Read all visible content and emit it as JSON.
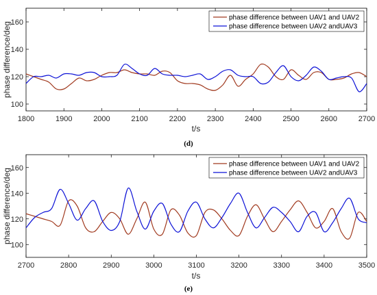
{
  "chart_data": [
    {
      "type": "line",
      "panel_label": "(d)",
      "xlabel": "t/s",
      "ylabel": "phase difference/deg",
      "xlim": [
        1800,
        2700
      ],
      "ylim": [
        95,
        170
      ],
      "xticks": [
        1800,
        1900,
        2000,
        2100,
        2200,
        2300,
        2400,
        2500,
        2600,
        2700
      ],
      "yticks": [
        100,
        120,
        140,
        160
      ],
      "legend_position": "top-right",
      "grid": false,
      "series": [
        {
          "name": "phase difference between UAV1 and UAV2",
          "color": "#a0391e",
          "x": [
            1800,
            1820,
            1840,
            1860,
            1880,
            1900,
            1920,
            1940,
            1960,
            1980,
            2000,
            2020,
            2040,
            2060,
            2080,
            2100,
            2120,
            2140,
            2160,
            2180,
            2200,
            2220,
            2240,
            2260,
            2280,
            2300,
            2320,
            2340,
            2360,
            2380,
            2400,
            2420,
            2440,
            2460,
            2480,
            2500,
            2520,
            2540,
            2560,
            2580,
            2600,
            2620,
            2640,
            2660,
            2680,
            2700
          ],
          "values": [
            122,
            120,
            118,
            116,
            111,
            111,
            115,
            119,
            117,
            118,
            121,
            123,
            123,
            125,
            123,
            122,
            122,
            121,
            124,
            123,
            117,
            115,
            115,
            114,
            111,
            110,
            114,
            121,
            113,
            118,
            122,
            129,
            127,
            120,
            118,
            125,
            121,
            118,
            123,
            123,
            118,
            118,
            119,
            122,
            123,
            120
          ]
        },
        {
          "name": "phase difference between UAV2 andUAV3",
          "color": "#0b10d6",
          "x": [
            1800,
            1820,
            1840,
            1860,
            1880,
            1900,
            1920,
            1940,
            1960,
            1980,
            2000,
            2020,
            2040,
            2060,
            2080,
            2100,
            2120,
            2140,
            2160,
            2180,
            2200,
            2220,
            2240,
            2260,
            2280,
            2300,
            2320,
            2340,
            2360,
            2380,
            2400,
            2420,
            2440,
            2460,
            2480,
            2500,
            2520,
            2540,
            2560,
            2580,
            2600,
            2620,
            2640,
            2660,
            2680,
            2700
          ],
          "values": [
            115,
            120,
            120,
            121,
            119,
            122,
            122,
            121,
            123,
            123,
            120,
            120,
            121,
            129,
            126,
            122,
            121,
            126,
            122,
            121,
            121,
            120,
            121,
            122,
            118,
            120,
            124,
            125,
            121,
            120,
            120,
            115,
            116,
            123,
            128,
            120,
            117,
            121,
            127,
            124,
            118,
            119,
            120,
            119,
            109,
            115
          ]
        }
      ]
    },
    {
      "type": "line",
      "panel_label": "(e)",
      "xlabel": "t/s",
      "ylabel": "phase difference/deg",
      "xlim": [
        2700,
        3500
      ],
      "ylim": [
        90,
        170
      ],
      "xticks": [
        2700,
        2800,
        2900,
        3000,
        3100,
        3200,
        3300,
        3400,
        3500
      ],
      "yticks": [
        100,
        120,
        140,
        160
      ],
      "legend_position": "top-right",
      "grid": false,
      "series": [
        {
          "name": "phase difference between UAV1 and UAV2",
          "color": "#a0391e",
          "x": [
            2700,
            2720,
            2740,
            2760,
            2780,
            2800,
            2820,
            2840,
            2860,
            2880,
            2900,
            2920,
            2940,
            2960,
            2980,
            3000,
            3020,
            3040,
            3060,
            3080,
            3100,
            3120,
            3140,
            3160,
            3180,
            3200,
            3220,
            3240,
            3260,
            3280,
            3300,
            3320,
            3340,
            3360,
            3380,
            3400,
            3420,
            3440,
            3460,
            3480,
            3500
          ],
          "values": [
            124,
            122,
            120,
            118,
            115,
            134,
            130,
            113,
            110,
            118,
            125,
            120,
            108,
            120,
            133,
            112,
            108,
            127,
            123,
            109,
            107,
            125,
            127,
            120,
            111,
            107,
            122,
            131,
            120,
            110,
            118,
            127,
            134,
            125,
            113,
            118,
            128,
            110,
            105,
            125,
            118
          ]
        },
        {
          "name": "phase difference between UAV2 andUAV3",
          "color": "#0b10d6",
          "x": [
            2700,
            2720,
            2740,
            2760,
            2780,
            2800,
            2820,
            2840,
            2860,
            2880,
            2900,
            2920,
            2940,
            2960,
            2980,
            3000,
            3020,
            3040,
            3060,
            3080,
            3100,
            3120,
            3140,
            3160,
            3180,
            3200,
            3220,
            3240,
            3260,
            3280,
            3300,
            3320,
            3340,
            3360,
            3380,
            3400,
            3420,
            3440,
            3460,
            3480,
            3500
          ],
          "values": [
            113,
            121,
            125,
            128,
            143,
            132,
            119,
            128,
            134,
            118,
            111,
            118,
            144,
            126,
            112,
            126,
            132,
            116,
            110,
            126,
            133,
            120,
            113,
            121,
            132,
            140,
            125,
            113,
            121,
            129,
            125,
            118,
            110,
            122,
            125,
            110,
            117,
            128,
            136,
            120,
            117
          ]
        }
      ]
    }
  ]
}
